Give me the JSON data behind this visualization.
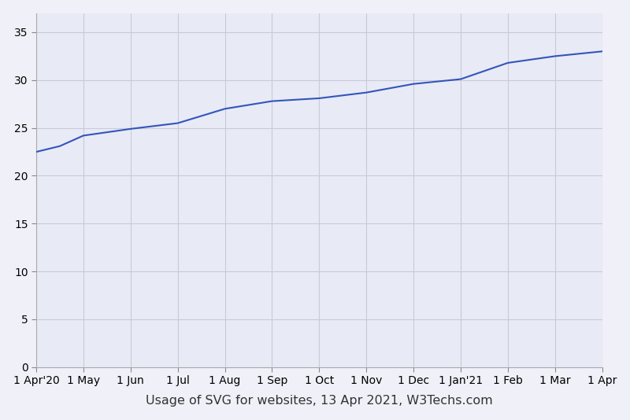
{
  "x_labels": [
    "1 Apr'20",
    "1 May",
    "1 Jun",
    "1 Jul",
    "1 Aug",
    "1 Sep",
    "1 Oct",
    "1 Nov",
    "1 Dec",
    "1 Jan'21",
    "1 Feb",
    "1 Mar",
    "1 Apr"
  ],
  "x_positions": [
    0,
    1,
    2,
    3,
    4,
    5,
    6,
    7,
    8,
    9,
    10,
    11,
    12
  ],
  "y_values": [
    22.5,
    23.1,
    24.2,
    24.9,
    25.5,
    27.0,
    27.8,
    28.1,
    28.7,
    29.6,
    30.1,
    31.8,
    32.5,
    33.0
  ],
  "x_data": [
    0,
    0.5,
    1,
    2,
    3,
    4,
    5,
    6,
    7,
    8,
    9,
    10,
    11,
    12
  ],
  "line_color": "#3355bb",
  "background_color": "#e8eaf6",
  "grid_color": "#c8cad8",
  "outer_bg": "#f0f0f8",
  "ylabel_values": [
    0,
    5,
    10,
    15,
    20,
    25,
    30,
    35
  ],
  "ylim": [
    0,
    37
  ],
  "xlabel": "Usage of SVG for websites, 13 Apr 2021, W3Techs.com",
  "xlabel_fontsize": 11.5,
  "tick_fontsize": 10,
  "line_width": 1.5
}
